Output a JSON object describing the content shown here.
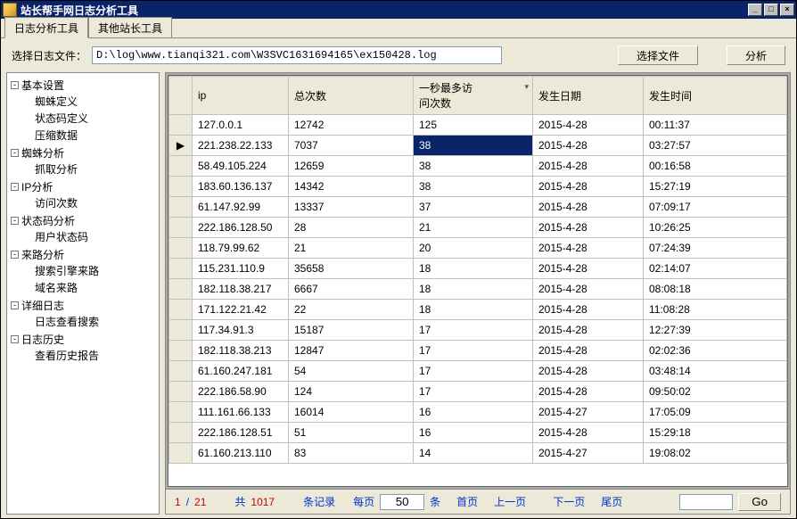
{
  "window": {
    "title": "站长帮手网日志分析工具",
    "min_label": "_",
    "max_label": "□",
    "close_label": "×"
  },
  "tabs": {
    "items": [
      {
        "label": "日志分析工具",
        "active": true
      },
      {
        "label": "其他站长工具",
        "active": false
      }
    ]
  },
  "filebar": {
    "label": "选择日志文件：",
    "path": "D:\\log\\www.tianqi321.com\\W3SVC1631694165\\ex150428.log",
    "choose_btn": "选择文件",
    "analyze_btn": "分析"
  },
  "tree": [
    {
      "label": "基本设置",
      "exp": "-",
      "children": [
        {
          "label": "蜘蛛定义"
        },
        {
          "label": "状态码定义"
        },
        {
          "label": "压缩数据"
        }
      ]
    },
    {
      "label": "蜘蛛分析",
      "exp": "-",
      "children": [
        {
          "label": "抓取分析"
        }
      ]
    },
    {
      "label": "IP分析",
      "exp": "-",
      "children": [
        {
          "label": "访问次数"
        }
      ]
    },
    {
      "label": "状态码分析",
      "exp": "-",
      "children": [
        {
          "label": "用户状态码"
        }
      ]
    },
    {
      "label": "来路分析",
      "exp": "-",
      "children": [
        {
          "label": "搜索引擎来路"
        },
        {
          "label": "域名来路"
        }
      ]
    },
    {
      "label": "详细日志",
      "exp": "-",
      "children": [
        {
          "label": "日志查看搜索"
        }
      ]
    },
    {
      "label": "日志历史",
      "exp": "-",
      "children": [
        {
          "label": "查看历史报告"
        }
      ]
    }
  ],
  "grid": {
    "columns": [
      {
        "key": "ip",
        "label": "ip"
      },
      {
        "key": "total",
        "label": "总次数"
      },
      {
        "key": "maxpersec",
        "label": "一秒最多访\n问次数",
        "sorted": "desc"
      },
      {
        "key": "date",
        "label": "发生日期"
      },
      {
        "key": "time",
        "label": "发生时间"
      }
    ],
    "selected_row_index": 1,
    "selected_col_index": 2,
    "rows": [
      {
        "ip": "127.0.0.1",
        "total": "12742",
        "maxpersec": "125",
        "date": "2015-4-28",
        "time": "00:11:37"
      },
      {
        "ip": "221.238.22.133",
        "total": "7037",
        "maxpersec": "38",
        "date": "2015-4-28",
        "time": "03:27:57"
      },
      {
        "ip": "58.49.105.224",
        "total": "12659",
        "maxpersec": "38",
        "date": "2015-4-28",
        "time": "00:16:58"
      },
      {
        "ip": "183.60.136.137",
        "total": "14342",
        "maxpersec": "38",
        "date": "2015-4-28",
        "time": "15:27:19"
      },
      {
        "ip": "61.147.92.99",
        "total": "13337",
        "maxpersec": "37",
        "date": "2015-4-28",
        "time": "07:09:17"
      },
      {
        "ip": "222.186.128.50",
        "total": "28",
        "maxpersec": "21",
        "date": "2015-4-28",
        "time": "10:26:25"
      },
      {
        "ip": "118.79.99.62",
        "total": "21",
        "maxpersec": "20",
        "date": "2015-4-28",
        "time": "07:24:39"
      },
      {
        "ip": "115.231.110.9",
        "total": "35658",
        "maxpersec": "18",
        "date": "2015-4-28",
        "time": "02:14:07"
      },
      {
        "ip": "182.118.38.217",
        "total": "6667",
        "maxpersec": "18",
        "date": "2015-4-28",
        "time": "08:08:18"
      },
      {
        "ip": "171.122.21.42",
        "total": "22",
        "maxpersec": "18",
        "date": "2015-4-28",
        "time": "11:08:28"
      },
      {
        "ip": "117.34.91.3",
        "total": "15187",
        "maxpersec": "17",
        "date": "2015-4-28",
        "time": "12:27:39"
      },
      {
        "ip": "182.118.38.213",
        "total": "12847",
        "maxpersec": "17",
        "date": "2015-4-28",
        "time": "02:02:36"
      },
      {
        "ip": "61.160.247.181",
        "total": "54",
        "maxpersec": "17",
        "date": "2015-4-28",
        "time": "03:48:14"
      },
      {
        "ip": "222.186.58.90",
        "total": "124",
        "maxpersec": "17",
        "date": "2015-4-28",
        "time": "09:50:02"
      },
      {
        "ip": "111.161.66.133",
        "total": "16014",
        "maxpersec": "16",
        "date": "2015-4-27",
        "time": "17:05:09"
      },
      {
        "ip": "222.186.128.51",
        "total": "51",
        "maxpersec": "16",
        "date": "2015-4-28",
        "time": "15:29:18"
      },
      {
        "ip": "61.160.213.110",
        "total": "83",
        "maxpersec": "14",
        "date": "2015-4-27",
        "time": "19:08:02"
      }
    ]
  },
  "pager": {
    "page_cur": "1",
    "page_sep": "/",
    "page_total": "21",
    "total_label_pre": "共",
    "total_records": "1017",
    "records_label": "条记录",
    "perpage_label": "每页",
    "perpage_value": "50",
    "perpage_suffix": "条",
    "first": "首页",
    "prev": "上一页",
    "next": "下一页",
    "last": "尾页",
    "go_label": "Go"
  },
  "colors": {
    "titlebar_bg": "#0a246a",
    "panel_bg": "#ece9d8",
    "selection_bg": "#0a246a",
    "accent_red": "#cc0000",
    "accent_blue": "#0033cc",
    "border": "#888888"
  }
}
